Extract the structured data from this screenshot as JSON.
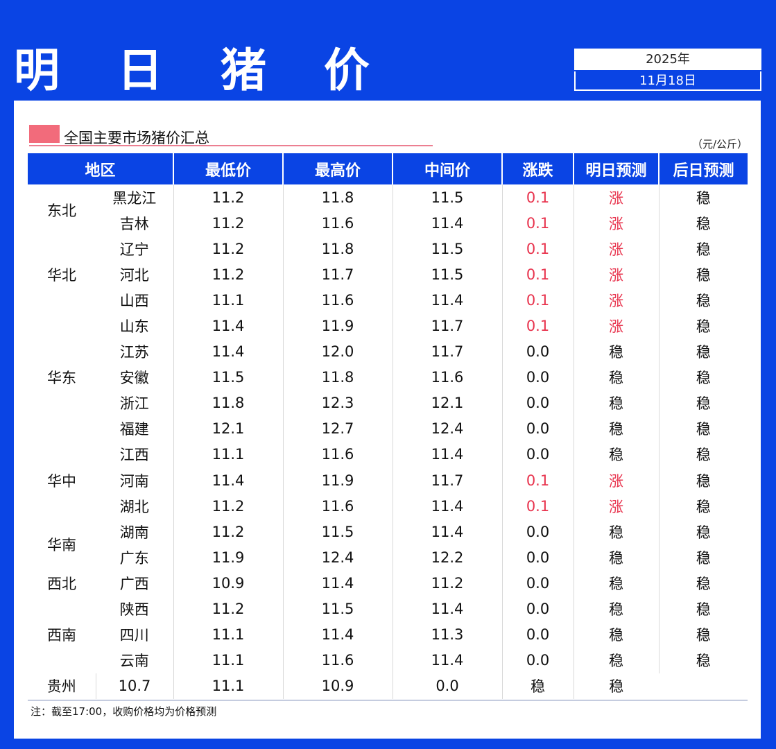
{
  "header": {
    "title": "明 日 猪 价",
    "year": "2025年",
    "date": "11月18日"
  },
  "section": {
    "title": "全国主要市场猪价汇总",
    "unit": "（元/公斤）"
  },
  "table": {
    "columns": [
      "地区",
      "最低价",
      "最高价",
      "中间价",
      "涨跌",
      "明日预测",
      "后日预测"
    ],
    "regions": [
      "东北",
      "华北",
      "华东",
      "华中",
      "华南",
      "西北",
      "西南"
    ],
    "rows": [
      {
        "province": "黑龙江",
        "low": "11.2",
        "high": "11.8",
        "mid": "11.5",
        "change": "0.1",
        "tomorrow": "涨",
        "after": "稳"
      },
      {
        "province": "吉林",
        "low": "11.2",
        "high": "11.6",
        "mid": "11.4",
        "change": "0.1",
        "tomorrow": "涨",
        "after": "稳"
      },
      {
        "province": "辽宁",
        "low": "11.2",
        "high": "11.8",
        "mid": "11.5",
        "change": "0.1",
        "tomorrow": "涨",
        "after": "稳"
      },
      {
        "province": "河北",
        "low": "11.2",
        "high": "11.7",
        "mid": "11.5",
        "change": "0.1",
        "tomorrow": "涨",
        "after": "稳"
      },
      {
        "province": "山西",
        "low": "11.1",
        "high": "11.6",
        "mid": "11.4",
        "change": "0.1",
        "tomorrow": "涨",
        "after": "稳"
      },
      {
        "province": "山东",
        "low": "11.4",
        "high": "11.9",
        "mid": "11.7",
        "change": "0.1",
        "tomorrow": "涨",
        "after": "稳"
      },
      {
        "province": "江苏",
        "low": "11.4",
        "high": "12.0",
        "mid": "11.7",
        "change": "0.0",
        "tomorrow": "稳",
        "after": "稳"
      },
      {
        "province": "安徽",
        "low": "11.5",
        "high": "11.8",
        "mid": "11.6",
        "change": "0.0",
        "tomorrow": "稳",
        "after": "稳"
      },
      {
        "province": "浙江",
        "low": "11.8",
        "high": "12.3",
        "mid": "12.1",
        "change": "0.0",
        "tomorrow": "稳",
        "after": "稳"
      },
      {
        "province": "福建",
        "low": "12.1",
        "high": "12.7",
        "mid": "12.4",
        "change": "0.0",
        "tomorrow": "稳",
        "after": "稳"
      },
      {
        "province": "江西",
        "low": "11.1",
        "high": "11.6",
        "mid": "11.4",
        "change": "0.0",
        "tomorrow": "稳",
        "after": "稳"
      },
      {
        "province": "河南",
        "low": "11.4",
        "high": "11.9",
        "mid": "11.7",
        "change": "0.1",
        "tomorrow": "涨",
        "after": "稳"
      },
      {
        "province": "湖北",
        "low": "11.2",
        "high": "11.6",
        "mid": "11.4",
        "change": "0.1",
        "tomorrow": "涨",
        "after": "稳"
      },
      {
        "province": "湖南",
        "low": "11.2",
        "high": "11.5",
        "mid": "11.4",
        "change": "0.0",
        "tomorrow": "稳",
        "after": "稳"
      },
      {
        "province": "广东",
        "low": "11.9",
        "high": "12.4",
        "mid": "12.2",
        "change": "0.0",
        "tomorrow": "稳",
        "after": "稳"
      },
      {
        "province": "广西",
        "low": "10.9",
        "high": "11.4",
        "mid": "11.2",
        "change": "0.0",
        "tomorrow": "稳",
        "after": "稳"
      },
      {
        "province": "陕西",
        "low": "11.2",
        "high": "11.5",
        "mid": "11.4",
        "change": "0.0",
        "tomorrow": "稳",
        "after": "稳"
      },
      {
        "province": "四川",
        "low": "11.1",
        "high": "11.4",
        "mid": "11.3",
        "change": "0.0",
        "tomorrow": "稳",
        "after": "稳"
      },
      {
        "province": "云南",
        "low": "11.1",
        "high": "11.6",
        "mid": "11.4",
        "change": "0.0",
        "tomorrow": "稳",
        "after": "稳"
      },
      {
        "province": "贵州",
        "low": "10.7",
        "high": "11.1",
        "mid": "10.9",
        "change": "0.0",
        "tomorrow": "稳",
        "after": "稳"
      }
    ]
  },
  "note": "注：截至17:00，收购价格均为价格预测",
  "colors": {
    "brand_blue": "#0a44e4",
    "up_red": "#e8344e",
    "accent_pink": "#f26b7b"
  }
}
